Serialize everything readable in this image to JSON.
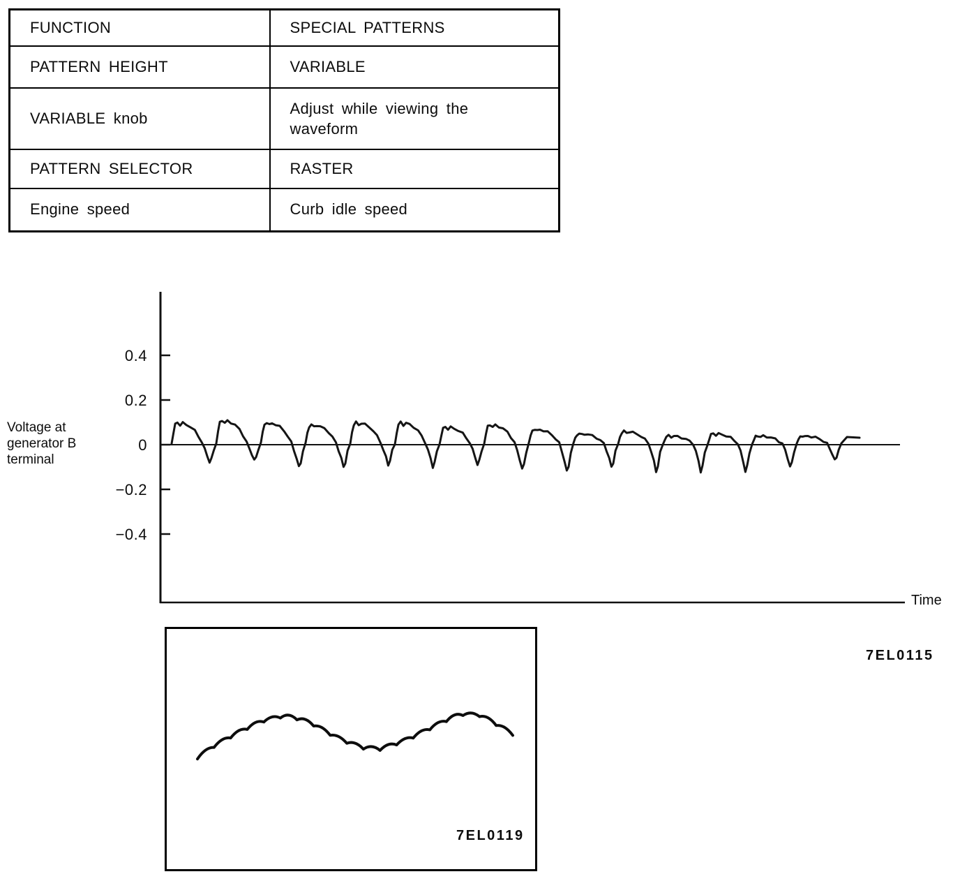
{
  "table": {
    "headers": [
      "FUNCTION",
      "SPECIAL PATTERNS"
    ],
    "rows": [
      [
        "PATTERN HEIGHT",
        "VARIABLE"
      ],
      [
        "VARIABLE knob",
        "Adjust while viewing the waveform"
      ],
      [
        "PATTERN SELECTOR",
        "RASTER"
      ],
      [
        "Engine speed",
        "Curb idle speed"
      ]
    ]
  },
  "chart": {
    "ylabel": "Voltage at generator B terminal",
    "xlabel": "Time",
    "figure_code": "7EL0115"
  },
  "inset": {
    "figure_code": "7EL0119"
  },
  "colors": {
    "ink": "#111111",
    "paper": "#ffffff"
  },
  "chart_data": [
    {
      "type": "line",
      "title": "Generator ripple voltage waveform (SPECIAL PATTERNS)",
      "xlabel": "Time",
      "ylabel": "Voltage at generator B terminal",
      "unit": "V",
      "yticks": [
        0.4,
        0.2,
        0,
        -0.2,
        -0.4
      ],
      "ytick_labels": [
        "0.4",
        "0.2",
        "0",
        "−0.2",
        "−0.4"
      ],
      "ylim": [
        -0.7,
        0.7
      ],
      "grid": false,
      "figure_code": "7EL0115",
      "cycles": [
        {
          "peak": 0.1,
          "trough": -0.08
        },
        {
          "peak": 0.11,
          "trough": -0.07
        },
        {
          "peak": 0.1,
          "trough": -0.1
        },
        {
          "peak": 0.09,
          "trough": -0.1
        },
        {
          "peak": 0.1,
          "trough": -0.09
        },
        {
          "peak": 0.1,
          "trough": -0.1
        },
        {
          "peak": 0.08,
          "trough": -0.09
        },
        {
          "peak": 0.09,
          "trough": -0.11
        },
        {
          "peak": 0.07,
          "trough": -0.12
        },
        {
          "peak": 0.05,
          "trough": -0.1
        },
        {
          "peak": 0.06,
          "trough": -0.12
        },
        {
          "peak": 0.04,
          "trough": -0.12
        },
        {
          "peak": 0.05,
          "trough": -0.12
        },
        {
          "peak": 0.04,
          "trough": -0.1
        },
        {
          "peak": 0.04,
          "trough": -0.07
        }
      ]
    },
    {
      "type": "line",
      "title": "Oscilloscope RASTER pattern inset",
      "figure_code": "7EL0119",
      "scallops": 19,
      "envelope_x": [
        0,
        0.05,
        0.12,
        0.2,
        0.28,
        0.35,
        0.45,
        0.52,
        0.58,
        0.66,
        0.75,
        0.83,
        0.9,
        0.96,
        1
      ],
      "envelope_y": [
        0.08,
        0.3,
        0.55,
        0.8,
        0.92,
        0.8,
        0.45,
        0.28,
        0.25,
        0.42,
        0.7,
        0.95,
        0.92,
        0.7,
        0.55
      ]
    }
  ]
}
